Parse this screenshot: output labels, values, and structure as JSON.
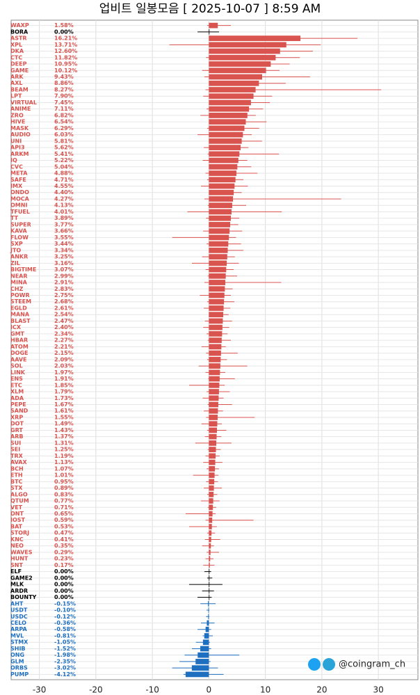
{
  "chart_data": {
    "type": "candle_h",
    "title": "업비트 일봉모음 [ 2025-10-07 ]  8:59 AM",
    "watermark": "@coingram_ch",
    "categories": [
      "WAXP",
      "BORA",
      "ASTR",
      "XPL",
      "DKA",
      "CTC",
      "DEEP",
      "GAME",
      "ARK",
      "AXL",
      "BEAM",
      "LPT",
      "VIRTUAL",
      "ANIME",
      "ZRO",
      "HIVE",
      "MASK",
      "AUDIO",
      "UNI",
      "API3",
      "ARKM",
      "IQ",
      "CVC",
      "META",
      "SAFE",
      "IMX",
      "ONDO",
      "MOCA",
      "OMNI",
      "TFUEL",
      "TT",
      "SUPER",
      "KAVA",
      "FLOW",
      "SXP",
      "JTO",
      "ANKR",
      "ZIL",
      "BIGTIME",
      "NEAR",
      "MINA",
      "CHZ",
      "POWR",
      "STEEM",
      "EGLD",
      "MANA",
      "BLAST",
      "ICX",
      "GMT",
      "HBAR",
      "ATOM",
      "DOGE",
      "AAVE",
      "SOL",
      "LINK",
      "ENS",
      "ETC",
      "XLM",
      "ADA",
      "PEPE",
      "SAND",
      "XRP",
      "DOT",
      "GRT",
      "ARB",
      "SUI",
      "SEI",
      "TRX",
      "AVAX",
      "BCH",
      "ETH",
      "BTC",
      "STX",
      "ALGO",
      "QTUM",
      "VET",
      "ONT",
      "IOST",
      "BAT",
      "STORJ",
      "KNC",
      "NEO",
      "WAVES",
      "HUNT",
      "SNT",
      "ELF",
      "GAME2",
      "MLK",
      "ARDR",
      "BOUNTY",
      "AHT",
      "USDT",
      "USDC",
      "CELO",
      "ARPA",
      "MVL",
      "STMX",
      "SHIB",
      "ONG",
      "GLM",
      "ORBS",
      "PUMP"
    ],
    "values": [
      1.58,
      0,
      16.21,
      13.71,
      12.6,
      11.82,
      10.95,
      10.12,
      9.43,
      8.86,
      8.27,
      7.9,
      7.45,
      7.11,
      6.82,
      6.54,
      6.29,
      6.03,
      5.81,
      5.62,
      5.41,
      5.22,
      5.04,
      4.88,
      4.71,
      4.55,
      4.4,
      4.27,
      4.13,
      4.01,
      3.89,
      3.77,
      3.66,
      3.55,
      3.44,
      3.34,
      3.25,
      3.16,
      3.07,
      2.99,
      2.91,
      2.83,
      2.75,
      2.68,
      2.61,
      2.54,
      2.47,
      2.4,
      2.34,
      2.27,
      2.21,
      2.15,
      2.09,
      2.03,
      1.97,
      1.91,
      1.85,
      1.79,
      1.73,
      1.67,
      1.61,
      1.55,
      1.49,
      1.43,
      1.37,
      1.31,
      1.25,
      1.19,
      1.13,
      1.07,
      1.01,
      0.95,
      0.89,
      0.83,
      0.77,
      0.71,
      0.65,
      0.59,
      0.53,
      0.47,
      0.41,
      0.35,
      0.29,
      0.23,
      0.17,
      0,
      0,
      0,
      0,
      0,
      -0.15,
      -0.1,
      -0.12,
      -0.36,
      -0.58,
      -0.81,
      -1.05,
      -1.52,
      -1.98,
      -2.35,
      -3.02,
      -4.12
    ],
    "value_labels": [
      "1.58%",
      "0.00%",
      "16.21%",
      "13.71%",
      "12.60%",
      "11.82%",
      "10.95%",
      "10.12%",
      "9.43%",
      "8.86%",
      "8.27%",
      "7.90%",
      "7.45%",
      "7.11%",
      "6.82%",
      "6.54%",
      "6.29%",
      "6.03%",
      "5.81%",
      "5.62%",
      "5.41%",
      "5.22%",
      "5.04%",
      "4.88%",
      "4.71%",
      "4.55%",
      "4.40%",
      "4.27%",
      "4.13%",
      "4.01%",
      "3.89%",
      "3.77%",
      "3.66%",
      "3.55%",
      "3.44%",
      "3.34%",
      "3.25%",
      "3.16%",
      "3.07%",
      "2.99%",
      "2.91%",
      "2.83%",
      "2.75%",
      "2.68%",
      "2.61%",
      "2.54%",
      "2.47%",
      "2.40%",
      "2.34%",
      "2.27%",
      "2.21%",
      "2.15%",
      "2.09%",
      "2.03%",
      "1.97%",
      "1.91%",
      "1.85%",
      "1.79%",
      "1.73%",
      "1.67%",
      "1.61%",
      "1.55%",
      "1.49%",
      "1.43%",
      "1.37%",
      "1.31%",
      "1.25%",
      "1.19%",
      "1.13%",
      "1.07%",
      "1.01%",
      "0.95%",
      "0.89%",
      "0.83%",
      "0.77%",
      "0.71%",
      "0.65%",
      "0.59%",
      "0.53%",
      "0.47%",
      "0.41%",
      "0.35%",
      "0.29%",
      "0.23%",
      "0.17%",
      "0.00%",
      "0.00%",
      "0.00%",
      "0.00%",
      "0.00%",
      "-0.15%",
      "-0.10%",
      "-0.12%",
      "-0.36%",
      "-0.58%",
      "-0.81%",
      "-1.05%",
      "-1.52%",
      "-1.98%",
      "-2.35%",
      "-3.02%",
      "-4.12%"
    ],
    "low": [
      -0.3,
      -2.0,
      0,
      -7.0,
      0,
      -0.5,
      0,
      -1.2,
      -0.8,
      0,
      -0.6,
      -1.0,
      0,
      -0.4,
      -1.5,
      0,
      -0.3,
      -2.0,
      0,
      -0.9,
      -0.2,
      -1.1,
      0,
      -0.6,
      -0.3,
      -1.4,
      0,
      -0.8,
      -0.2,
      -3.8,
      -0.5,
      0,
      -1.0,
      -6.5,
      -0.4,
      0,
      -1.2,
      -3.0,
      -0.6,
      -0.2,
      -0.8,
      0,
      -1.6,
      -0.3,
      -0.9,
      0,
      -0.7,
      -1.0,
      -0.4,
      -0.2,
      -1.3,
      -0.5,
      -0.3,
      -1.8,
      -0.6,
      -0.1,
      -3.5,
      -0.4,
      -1.1,
      -0.2,
      -0.9,
      -0.5,
      -1.3,
      -0.3,
      -0.7,
      -2.4,
      -0.2,
      -0.6,
      -1.0,
      -0.4,
      -2.8,
      -0.5,
      -0.9,
      -0.3,
      -1.4,
      -0.2,
      -4.1,
      -0.6,
      -3.5,
      -0.3,
      -0.7,
      -1.2,
      -0.4,
      -0.6,
      -1.0,
      -0.8,
      -0.3,
      -3.5,
      -1.2,
      -2.0,
      -1.5,
      -0.4,
      -0.5,
      -1.4,
      -2.0,
      -1.1,
      -2.3,
      -3.0,
      -4.3,
      -5.2,
      -6.5,
      -4.5
    ],
    "high": [
      3.9,
      1.8,
      26.3,
      19.8,
      18.4,
      16.1,
      14.3,
      12.5,
      17.9,
      13.6,
      30.5,
      11.2,
      10.8,
      9.6,
      8.3,
      10.2,
      8.9,
      7.6,
      9.4,
      7.0,
      12.4,
      6.8,
      7.5,
      8.6,
      6.1,
      6.9,
      5.8,
      23.4,
      6.6,
      12.9,
      5.4,
      5.2,
      5.9,
      4.8,
      5.7,
      6.1,
      4.6,
      5.3,
      4.4,
      5.0,
      12.8,
      4.2,
      3.9,
      4.5,
      3.8,
      3.5,
      4.1,
      3.6,
      3.3,
      3.9,
      3.0,
      5.1,
      3.2,
      6.8,
      2.9,
      4.6,
      2.8,
      3.7,
      2.6,
      4.1,
      2.5,
      8.1,
      2.3,
      3.1,
      2.2,
      4.0,
      2.1,
      1.9,
      2.4,
      1.8,
      1.7,
      1.6,
      2.3,
      1.5,
      1.9,
      1.3,
      1.2,
      7.9,
      1.4,
      1.1,
      2.0,
      0.9,
      1.8,
      0.8,
      1.0,
      0.4,
      0.6,
      2.4,
      0.9,
      0.5,
      1.2,
      0.1,
      0.1,
      1.0,
      0.4,
      0.7,
      0.2,
      0.4,
      5.4,
      0.3,
      1.6,
      2.6
    ],
    "colors": {
      "up": "#d9534f",
      "flat": "#000000",
      "down": "#1f6fc0"
    },
    "xlim": [
      -35,
      37
    ],
    "xticks": [
      -30,
      -20,
      -10,
      0,
      10,
      20,
      30
    ],
    "grid": true
  }
}
